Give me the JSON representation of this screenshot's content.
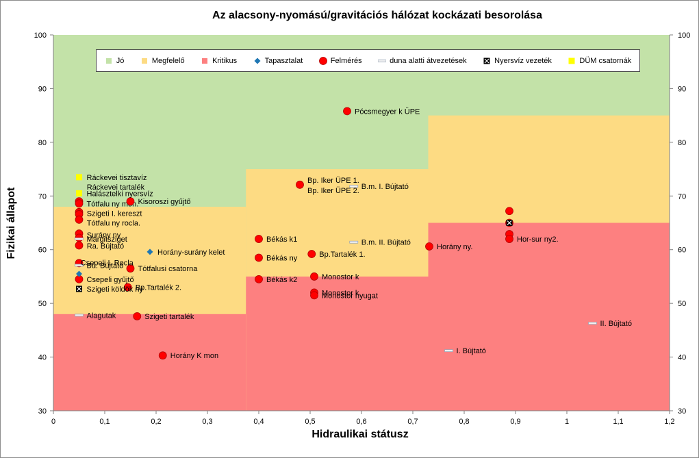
{
  "chart_data": {
    "type": "scatter",
    "title": "Az alacsony-nyomású/gravitációs hálózat kockázati besorolása",
    "xlabel": "Hidraulikai státusz",
    "ylabel": "Fizikai állapot",
    "xlim": [
      0,
      1.2
    ],
    "ylim": [
      30,
      100
    ],
    "x_ticks": [
      "0",
      "0,1",
      "0,2",
      "0,3",
      "0,4",
      "0,5",
      "0,6",
      "0,7",
      "0,8",
      "0,9",
      "1",
      "1,1",
      "1,2"
    ],
    "y_ticks": [
      "30",
      "40",
      "50",
      "60",
      "70",
      "80",
      "90",
      "100"
    ],
    "grid": false,
    "legend_position": "top",
    "colors": {
      "jo": "#c3e2a8",
      "megfelelo": "#fddb83",
      "kritikus": "#fd8080",
      "tapasztalat": "#1f77b4",
      "felmeres": "#ff0000",
      "duna": "#c9dca8",
      "dum": "#ffff00"
    },
    "zones": {
      "jo": {
        "name": "Jó",
        "x_breaks": [
          0,
          0.375,
          0.73,
          1.2
        ],
        "upper": 100
      },
      "megfelelo": {
        "name": "Megfelelő",
        "x_breaks": [
          0,
          0.375,
          0.73,
          1.2
        ],
        "lower_top": [
          68,
          75,
          85
        ]
      },
      "kritikus": {
        "name": "Kritikus",
        "x_breaks": [
          0,
          0.375,
          0.73,
          1.2
        ],
        "top": [
          48,
          55,
          65
        ]
      }
    },
    "legend": [
      {
        "name": "Jó",
        "kind": "area",
        "key": "jo"
      },
      {
        "name": "Megfelelő",
        "kind": "area",
        "key": "megfelelo"
      },
      {
        "name": "Kritikus",
        "kind": "area",
        "key": "kritikus"
      },
      {
        "name": "Tapasztalat",
        "kind": "diamond",
        "key": "tapasztalat"
      },
      {
        "name": "Felmérés",
        "kind": "circle",
        "key": "felmeres"
      },
      {
        "name": "duna alatti átvezetések",
        "kind": "dash",
        "key": "duna"
      },
      {
        "name": "Nyersvíz vezeték",
        "kind": "xbox",
        "key": "nyersviz"
      },
      {
        "name": "DÜM csatornák",
        "kind": "square",
        "key": "dum"
      }
    ],
    "series": [
      {
        "name": "Felmérés",
        "marker": "circle",
        "points": [
          {
            "x": 0.572,
            "y": 85.8,
            "label": "Pócsmegyer k ÜPE"
          },
          {
            "x": 0.48,
            "y": 72.1,
            "label": "Bp. Iker ÜPE 1.\nBp. Iker ÜPE 2."
          },
          {
            "x": 0.05,
            "y": 69.0,
            "label": ""
          },
          {
            "x": 0.05,
            "y": 68.6,
            "label": "Tótfalu ny mon."
          },
          {
            "x": 0.15,
            "y": 69.0,
            "label": "Kisoroszi gyűjtő"
          },
          {
            "x": 0.05,
            "y": 67.0,
            "label": ""
          },
          {
            "x": 0.05,
            "y": 66.6,
            "label": ""
          },
          {
            "x": 0.05,
            "y": 65.6,
            "label": ""
          },
          {
            "x": 0.05,
            "y": 63.0,
            "label": ""
          },
          {
            "x": 0.05,
            "y": 62.2,
            "label": ""
          },
          {
            "x": 0.05,
            "y": 60.8,
            "label": ""
          },
          {
            "x": 0.05,
            "y": 57.5,
            "label": ""
          },
          {
            "x": 0.15,
            "y": 56.5,
            "label": "Tótfalusi csatorna"
          },
          {
            "x": 0.05,
            "y": 54.5,
            "label": "Csepeli gyűjtő"
          },
          {
            "x": 0.145,
            "y": 53.0,
            "label": "Bp.Tartalék 2."
          },
          {
            "x": 0.163,
            "y": 47.6,
            "label": "Szigeti tartalék"
          },
          {
            "x": 0.213,
            "y": 40.3,
            "label": "Horány K mon"
          },
          {
            "x": 0.4,
            "y": 62.0,
            "label": "Békás k1"
          },
          {
            "x": 0.4,
            "y": 58.5,
            "label": "Békás ny"
          },
          {
            "x": 0.4,
            "y": 54.5,
            "label": "Békás k2"
          },
          {
            "x": 0.503,
            "y": 59.2,
            "label": "Bp.Tartalék 1."
          },
          {
            "x": 0.508,
            "y": 55.0,
            "label": "Monostor k"
          },
          {
            "x": 0.508,
            "y": 52.0,
            "label": "Monostor k"
          },
          {
            "x": 0.508,
            "y": 51.5,
            "label": "Monostor nyugat"
          },
          {
            "x": 0.732,
            "y": 60.6,
            "label": "Horány ny."
          },
          {
            "x": 0.888,
            "y": 67.2,
            "label": ""
          },
          {
            "x": 0.888,
            "y": 65.0,
            "label": ""
          },
          {
            "x": 0.888,
            "y": 62.9,
            "label": ""
          },
          {
            "x": 0.888,
            "y": 62.0,
            "label": "Hor-sur ny2."
          }
        ]
      },
      {
        "name": "Tapasztalat",
        "marker": "diamond",
        "points": [
          {
            "x": 0.188,
            "y": 59.6,
            "label": "Horány-surány kelet"
          },
          {
            "x": 0.05,
            "y": 55.5,
            "label": ""
          }
        ]
      },
      {
        "name": "duna alatti átvezetések",
        "marker": "dash",
        "points": [
          {
            "x": 0.585,
            "y": 71.8,
            "label": "B.m.  I. Bújtató"
          },
          {
            "x": 0.585,
            "y": 61.4,
            "label": "B.m.  II. Bújtató"
          },
          {
            "x": 0.77,
            "y": 41.2,
            "label": "I. Bújtató"
          },
          {
            "x": 1.05,
            "y": 46.3,
            "label": "II. Bújtató"
          },
          {
            "x": 0.05,
            "y": 47.8,
            "label": "Alagutak"
          },
          {
            "x": 0.05,
            "y": 57.1,
            "label": "Bú. Bújtató"
          },
          {
            "x": 0.05,
            "y": 62.0,
            "label": "Margitsziget"
          }
        ]
      },
      {
        "name": "Nyersvíz vezeték",
        "marker": "xbox",
        "points": [
          {
            "x": 0.05,
            "y": 52.7,
            "label": "Szigeti köldök ny"
          },
          {
            "x": 0.888,
            "y": 65.0,
            "label": ""
          }
        ]
      },
      {
        "name": "DÜM csatornák",
        "marker": "square",
        "points": [
          {
            "x": 0.05,
            "y": 73.5,
            "label": "Ráckevei tisztavíz"
          },
          {
            "x": 0.05,
            "y": 70.5,
            "label": "Halásztelki nyersvíz"
          }
        ]
      }
    ],
    "free_labels": [
      {
        "x": 0.065,
        "y": 71.7,
        "label": "Ráckevei tartalék"
      },
      {
        "x": 0.065,
        "y": 66.8,
        "label": "Szigeti I. kereszt"
      },
      {
        "x": 0.065,
        "y": 65.0,
        "label": "Tótfalu ny rocla."
      },
      {
        "x": 0.065,
        "y": 62.8,
        "label": "Surány ny"
      },
      {
        "x": 0.065,
        "y": 60.7,
        "label": "Ra. Bújtató"
      },
      {
        "x": 0.053,
        "y": 57.6,
        "label": "Csepeli I. Rocla"
      }
    ]
  }
}
